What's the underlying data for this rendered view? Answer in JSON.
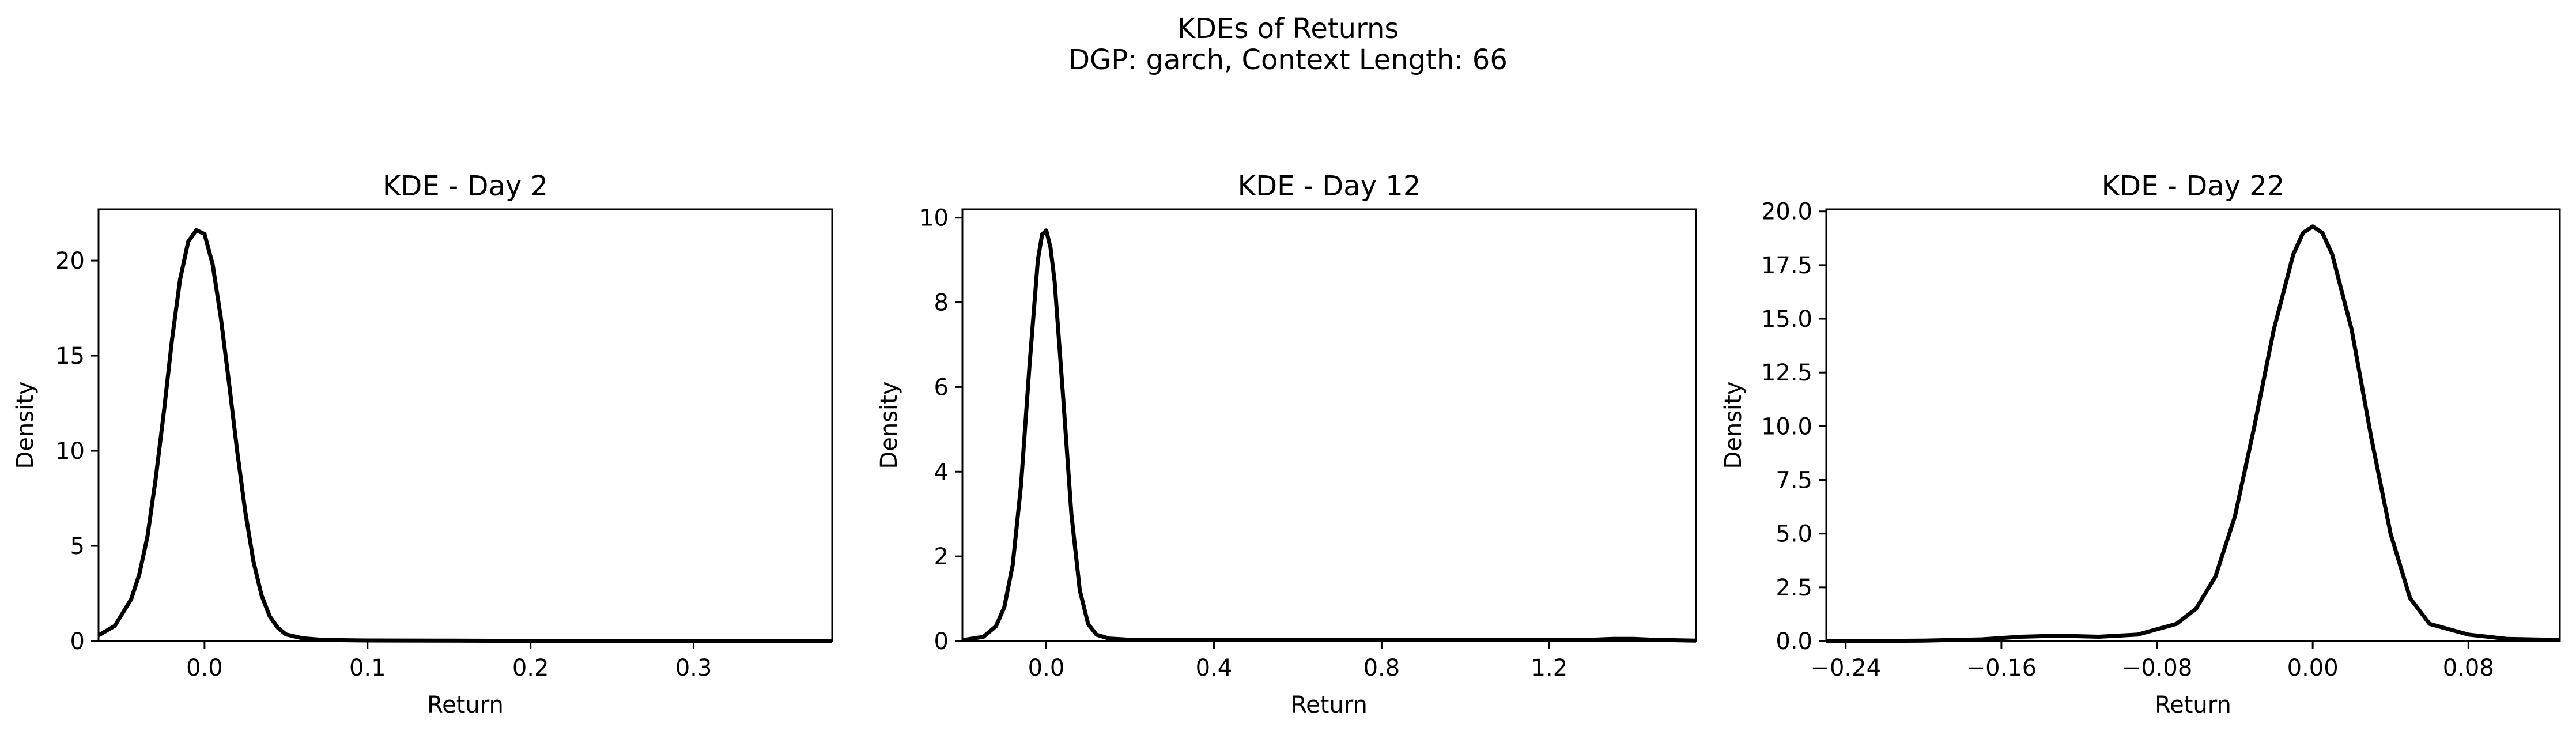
{
  "figure": {
    "title": "KDEs of Returns",
    "subtitle": "DGP: garch, Context Length: 66"
  },
  "chart_data": [
    {
      "type": "line",
      "title": "KDE - Day 2",
      "xlabel": "Return",
      "ylabel": "Density",
      "xlim": [
        -0.065,
        0.385
      ],
      "ylim": [
        0,
        22.7
      ],
      "xticks": [
        0.0,
        0.1,
        0.2,
        0.3
      ],
      "xtick_labels": [
        "0.0",
        "0.1",
        "0.2",
        "0.3"
      ],
      "yticks": [
        0,
        5,
        10,
        15,
        20
      ],
      "ytick_labels": [
        "0",
        "5",
        "10",
        "15",
        "20"
      ],
      "grid": false,
      "series": [
        {
          "color": "#000000",
          "x": [
            -0.065,
            -0.055,
            -0.045,
            -0.04,
            -0.035,
            -0.03,
            -0.025,
            -0.02,
            -0.015,
            -0.01,
            -0.005,
            0.0,
            0.005,
            0.01,
            0.015,
            0.02,
            0.025,
            0.03,
            0.035,
            0.04,
            0.045,
            0.05,
            0.06,
            0.07,
            0.08,
            0.1,
            0.15,
            0.2,
            0.3,
            0.385
          ],
          "y": [
            0.3,
            0.8,
            2.2,
            3.5,
            5.5,
            8.5,
            12.0,
            15.8,
            19.0,
            21.0,
            21.6,
            21.4,
            19.8,
            17.0,
            13.6,
            10.0,
            6.8,
            4.2,
            2.4,
            1.3,
            0.7,
            0.35,
            0.15,
            0.08,
            0.05,
            0.03,
            0.02,
            0.01,
            0.01,
            0.0
          ]
        }
      ]
    },
    {
      "type": "line",
      "title": "KDE - Day 12",
      "xlabel": "Return",
      "ylabel": "Density",
      "xlim": [
        -0.2,
        1.55
      ],
      "ylim": [
        0,
        10.2
      ],
      "xticks": [
        0.0,
        0.4,
        0.8,
        1.2
      ],
      "xtick_labels": [
        "0.0",
        "0.4",
        "0.8",
        "1.2"
      ],
      "yticks": [
        0,
        2,
        4,
        6,
        8,
        10
      ],
      "ytick_labels": [
        "0",
        "2",
        "4",
        "6",
        "8",
        "10"
      ],
      "grid": false,
      "series": [
        {
          "color": "#000000",
          "x": [
            -0.2,
            -0.15,
            -0.12,
            -0.1,
            -0.08,
            -0.06,
            -0.04,
            -0.02,
            -0.01,
            0.0,
            0.01,
            0.02,
            0.04,
            0.06,
            0.08,
            0.1,
            0.12,
            0.15,
            0.2,
            0.3,
            0.5,
            0.8,
            1.0,
            1.2,
            1.3,
            1.35,
            1.4,
            1.45,
            1.55
          ],
          "y": [
            0.02,
            0.1,
            0.35,
            0.8,
            1.8,
            3.7,
            6.5,
            9.0,
            9.6,
            9.7,
            9.3,
            8.5,
            5.8,
            3.0,
            1.2,
            0.4,
            0.15,
            0.06,
            0.03,
            0.02,
            0.02,
            0.02,
            0.02,
            0.02,
            0.03,
            0.05,
            0.05,
            0.03,
            0.01
          ]
        }
      ]
    },
    {
      "type": "line",
      "title": "KDE - Day 22",
      "xlabel": "Return",
      "ylabel": "Density",
      "xlim": [
        -0.25,
        0.127
      ],
      "ylim": [
        0,
        20.1
      ],
      "xticks": [
        -0.24,
        -0.16,
        -0.08,
        0.0,
        0.08
      ],
      "xtick_labels": [
        "−0.24",
        "−0.16",
        "−0.08",
        "0.00",
        "0.08"
      ],
      "yticks": [
        0,
        2.5,
        5,
        7.5,
        10,
        12.5,
        15,
        17.5,
        20
      ],
      "ytick_labels": [
        "0.0",
        "2.5",
        "5.0",
        "7.5",
        "10.0",
        "12.5",
        "15.0",
        "17.5",
        "20.0"
      ],
      "grid": false,
      "series": [
        {
          "color": "#000000",
          "x": [
            -0.25,
            -0.2,
            -0.17,
            -0.15,
            -0.13,
            -0.11,
            -0.09,
            -0.07,
            -0.06,
            -0.05,
            -0.04,
            -0.03,
            -0.02,
            -0.01,
            -0.005,
            0.0,
            0.005,
            0.01,
            0.02,
            0.03,
            0.04,
            0.05,
            0.06,
            0.08,
            0.1,
            0.127
          ],
          "y": [
            0.0,
            0.02,
            0.08,
            0.2,
            0.25,
            0.2,
            0.3,
            0.8,
            1.5,
            3.0,
            5.8,
            10.0,
            14.5,
            18.0,
            19.0,
            19.3,
            19.0,
            18.0,
            14.5,
            9.5,
            5.0,
            2.0,
            0.8,
            0.3,
            0.1,
            0.05
          ]
        }
      ]
    }
  ]
}
